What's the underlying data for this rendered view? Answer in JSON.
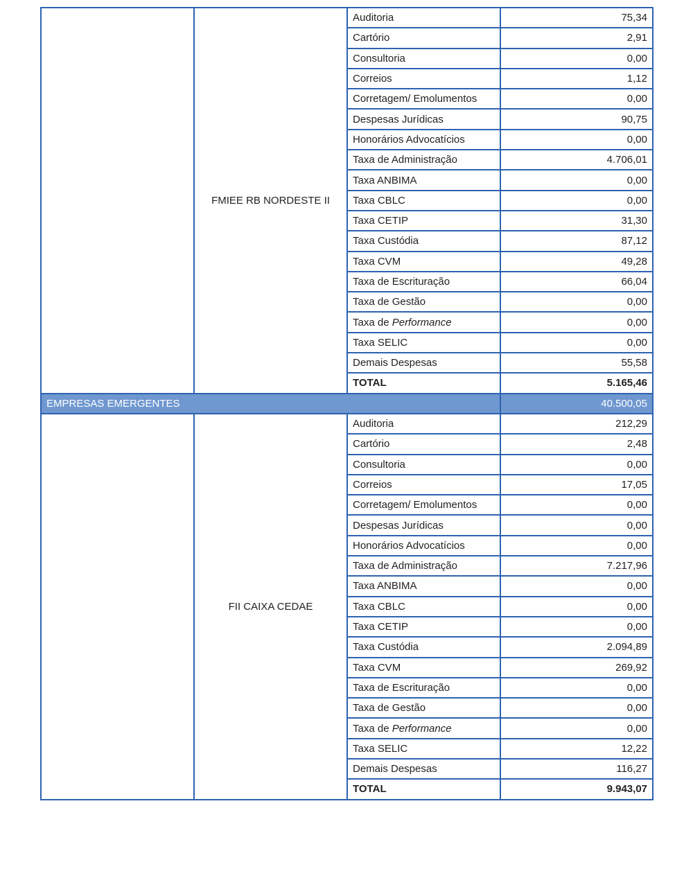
{
  "table": {
    "block_1": {
      "fund": "FMIEE RB NORDESTE II",
      "rows": [
        [
          "Auditoria",
          "75,34"
        ],
        [
          "Cartório",
          "2,91"
        ],
        [
          "Consultoria",
          "0,00"
        ],
        [
          "Correios",
          "1,12"
        ],
        [
          "Corretagem/ Emolumentos",
          "0,00"
        ],
        [
          "Despesas Jurídicas",
          "90,75"
        ],
        [
          "Honorários Advocatícios",
          "0,00"
        ],
        [
          "Taxa de Administração",
          "4.706,01"
        ],
        [
          "Taxa ANBIMA",
          "0,00"
        ],
        [
          "Taxa CBLC",
          "0,00"
        ],
        [
          "Taxa CETIP",
          "31,30"
        ],
        [
          "Taxa Custódia",
          "87,12"
        ],
        [
          "Taxa CVM",
          "49,28"
        ],
        [
          "Taxa de Escrituração",
          "66,04"
        ],
        [
          "Taxa de Gestão",
          "0,00"
        ],
        [
          {
            "text": "Taxa de",
            "emphasis": "Performance"
          },
          "0,00"
        ],
        [
          "Taxa SELIC",
          "0,00"
        ],
        [
          "Demais Despesas",
          "55,58"
        ]
      ],
      "total": [
        "TOTAL",
        "5.165,46"
      ]
    },
    "section_row": [
      "EMPRESAS EMERGENTES",
      "40.500,05"
    ],
    "block_2": {
      "fund": "FII CAIXA CEDAE",
      "rows": [
        [
          "Auditoria",
          "212,29"
        ],
        [
          "Cartório",
          "2,48"
        ],
        [
          "Consultoria",
          "0,00"
        ],
        [
          "Correios",
          "17,05"
        ],
        [
          "Corretagem/ Emolumentos",
          "0,00"
        ],
        [
          "Despesas Jurídicas",
          "0,00"
        ],
        [
          "Honorários Advocatícios",
          "0,00"
        ],
        [
          "Taxa de Administração",
          "7.217,96"
        ],
        [
          "Taxa ANBIMA",
          "0,00"
        ],
        [
          "Taxa CBLC",
          "0,00"
        ],
        [
          "Taxa CETIP",
          "0,00"
        ],
        [
          "Taxa Custódia",
          "2.094,89"
        ],
        [
          "Taxa CVM",
          "269,92"
        ],
        [
          "Taxa de Escrituração",
          "0,00"
        ],
        [
          "Taxa de Gestão",
          "0,00"
        ],
        [
          {
            "text": "Taxa de",
            "emphasis": "Performance"
          },
          "0,00"
        ],
        [
          "Taxa SELIC",
          "12,22"
        ],
        [
          "Demais Despesas",
          "116,27"
        ]
      ],
      "total": [
        "TOTAL",
        "9.943,07"
      ]
    }
  }
}
